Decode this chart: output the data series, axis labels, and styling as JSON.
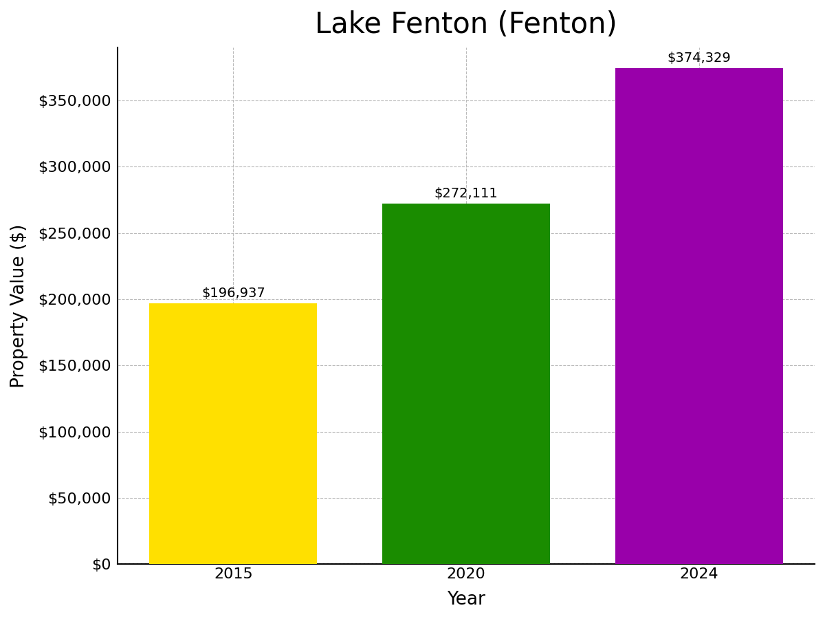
{
  "title": "Lake Fenton (Fenton)",
  "xlabel": "Year",
  "ylabel": "Property Value ($)",
  "categories": [
    "2015",
    "2020",
    "2024"
  ],
  "values": [
    196937,
    272111,
    374329
  ],
  "bar_colors": [
    "#FFE000",
    "#1A8C00",
    "#9900AA"
  ],
  "bar_labels": [
    "$196,937",
    "$272,111",
    "$374,329"
  ],
  "ylim": [
    0,
    390000
  ],
  "yticks": [
    0,
    50000,
    100000,
    150000,
    200000,
    250000,
    300000,
    350000
  ],
  "ytick_labels": [
    "$0",
    "$50,000",
    "$100,000",
    "$150,000",
    "$200,000",
    "$250,000",
    "$300,000",
    "$350,000"
  ],
  "title_fontsize": 30,
  "axis_label_fontsize": 19,
  "tick_fontsize": 16,
  "bar_label_fontsize": 14,
  "background_color": "#ffffff",
  "grid_color": "#bbbbbb",
  "bar_width": 0.72
}
